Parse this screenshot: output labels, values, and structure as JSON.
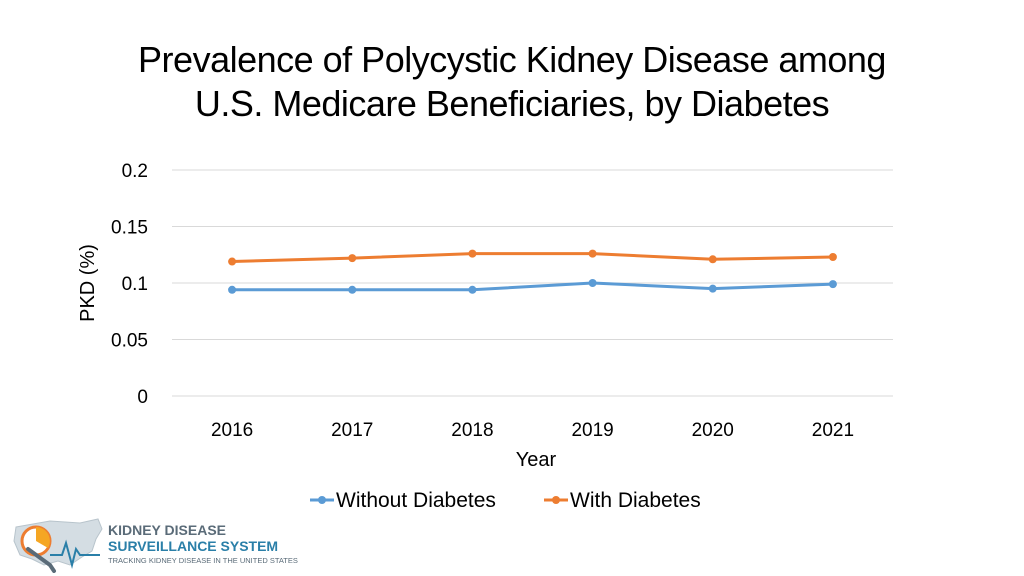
{
  "title_line1": "Prevalence of Polycystic Kidney Disease among",
  "title_line2": "U.S. Medicare Beneficiaries, by Diabetes",
  "logo": {
    "line1": "KIDNEY DISEASE",
    "line2": "SURVEILLANCE SYSTEM",
    "tagline": "TRACKING KIDNEY DISEASE IN THE UNITED STATES"
  },
  "colors": {
    "without": "#5b9bd5",
    "with": "#ed7d31",
    "grid": "#d9d9d9"
  },
  "chart_data": {
    "type": "line",
    "title": "Prevalence of Polycystic Kidney Disease among U.S. Medicare Beneficiaries, by Diabetes",
    "xlabel": "Year",
    "ylabel": "PKD (%)",
    "categories": [
      "2016",
      "2017",
      "2018",
      "2019",
      "2020",
      "2021"
    ],
    "ylim": [
      0,
      0.2
    ],
    "yticks": [
      "0",
      "0.05",
      "0.1",
      "0.15",
      "0.2"
    ],
    "grid": true,
    "legend_position": "bottom",
    "series": [
      {
        "name": "Without Diabetes",
        "values": [
          0.094,
          0.094,
          0.094,
          0.1,
          0.095,
          0.099
        ]
      },
      {
        "name": "With Diabetes",
        "values": [
          0.119,
          0.122,
          0.126,
          0.126,
          0.121,
          0.123
        ]
      }
    ]
  }
}
